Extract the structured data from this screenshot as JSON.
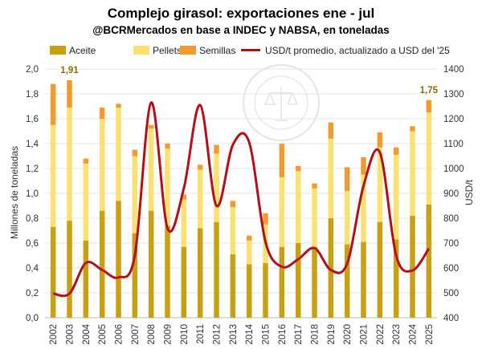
{
  "chart_data": {
    "type": "bar",
    "title": "Complejo girasol: exportaciones ene - jul",
    "subtitle": "@BCRMercados en base a INDEC y NABSA, en toneladas",
    "ylabel": "Millones de toneladas",
    "y2label": "USD/t",
    "ylim": [
      0,
      2.0
    ],
    "y2lim": [
      400,
      1400
    ],
    "yticks": [
      "0,0",
      "0,2",
      "0,4",
      "0,6",
      "0,8",
      "1,0",
      "1,2",
      "1,4",
      "1,6",
      "1,8",
      "2,0"
    ],
    "y2ticks": [
      "400",
      "500",
      "600",
      "700",
      "800",
      "900",
      "1000",
      "1100",
      "1200",
      "1300",
      "1400"
    ],
    "grid": true,
    "legend_position": "top",
    "categories": [
      "2002",
      "2003",
      "2004",
      "2005",
      "2006",
      "2007",
      "2008",
      "2009",
      "2010",
      "2011",
      "2012",
      "2013",
      "2014",
      "2015",
      "2016",
      "2017",
      "2018",
      "2019",
      "2020",
      "2021",
      "2022",
      "2023",
      "2024",
      "2025"
    ],
    "series": [
      {
        "name": "Aceite",
        "kind": "stacked-bar",
        "color": "#c9a00f",
        "values": [
          0.73,
          0.78,
          0.62,
          0.86,
          0.94,
          0.68,
          0.86,
          0.74,
          0.57,
          0.72,
          0.77,
          0.51,
          0.43,
          0.44,
          0.57,
          0.6,
          0.57,
          0.8,
          0.59,
          0.61,
          0.77,
          0.63,
          0.82,
          0.91
        ]
      },
      {
        "name": "Pellets",
        "kind": "stacked-bar",
        "color": "#fbe072",
        "values": [
          0.82,
          0.91,
          0.62,
          0.74,
          0.75,
          0.62,
          0.66,
          0.62,
          0.38,
          0.47,
          0.55,
          0.38,
          0.19,
          0.31,
          0.56,
          0.58,
          0.47,
          0.64,
          0.43,
          0.54,
          0.6,
          0.68,
          0.68,
          0.74
        ]
      },
      {
        "name": "Semillas",
        "kind": "stacked-bar",
        "color": "#f39a2c",
        "values": [
          0.33,
          0.22,
          0.04,
          0.09,
          0.03,
          0.05,
          0.03,
          0.04,
          0.04,
          0.04,
          0.07,
          0.05,
          0.04,
          0.09,
          0.27,
          0.04,
          0.04,
          0.13,
          0.19,
          0.14,
          0.12,
          0.06,
          0.04,
          0.1
        ]
      },
      {
        "name": "USD/t promedio, actualizado a USD del '25",
        "kind": "line",
        "axis": "right",
        "color": "#b30f14",
        "values": [
          497,
          497,
          620,
          592,
          562,
          650,
          1265,
          760,
          920,
          1255,
          850,
          1095,
          1105,
          705,
          605,
          635,
          680,
          592,
          618,
          930,
          1065,
          650,
          590,
          678
        ]
      }
    ],
    "data_labels": [
      {
        "category": "2003",
        "text": "1,91"
      },
      {
        "category": "2025",
        "text": "1,75"
      }
    ],
    "watermark": "BOLSA DE COMERCIO DE ROSARIO"
  }
}
